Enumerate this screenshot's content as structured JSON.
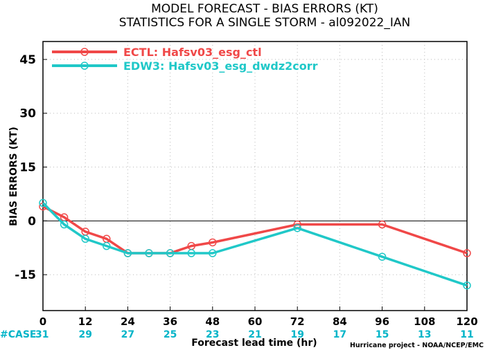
{
  "title_line1": "MODEL FORECAST - BIAS ERRORS (KT)",
  "title_line2": "STATISTICS FOR A SINGLE STORM - al092022_IAN",
  "credit": "Hurricane project - NOAA/NCEP/EMC",
  "case_label": "#CASE",
  "case_color": "#00b4c8",
  "chart_data": {
    "type": "line",
    "xlabel": "Forecast lead time (hr)",
    "ylabel": "BIAS ERRORS (KT)",
    "xlim": [
      0,
      120
    ],
    "ylim": [
      -25,
      50
    ],
    "xticks": [
      0,
      12,
      24,
      36,
      48,
      60,
      72,
      84,
      96,
      108,
      120
    ],
    "yticks": [
      -15,
      0,
      15,
      30,
      45
    ],
    "grid": true,
    "legend_position": "top-left",
    "case_counts": [
      31,
      29,
      27,
      25,
      23,
      21,
      19,
      17,
      15,
      13,
      11
    ],
    "series": [
      {
        "name": "ECTL: Hafsv03_esg_ctl",
        "color": "#f04848",
        "x": [
          0,
          6,
          12,
          18,
          24,
          30,
          36,
          42,
          48,
          72,
          96,
          120
        ],
        "y": [
          4,
          1,
          -3,
          -5,
          -9,
          -9,
          -9,
          -7,
          -6,
          -1,
          -1,
          -9
        ]
      },
      {
        "name": "EDW3: Hafsv03_esg_dwdz2corr",
        "color": "#20c8c8",
        "x": [
          0,
          6,
          12,
          18,
          24,
          30,
          36,
          42,
          48,
          72,
          96,
          120
        ],
        "y": [
          5,
          -1,
          -5,
          -7,
          -9,
          -9,
          -9,
          -9,
          -9,
          -2,
          -10,
          -18
        ]
      }
    ]
  }
}
